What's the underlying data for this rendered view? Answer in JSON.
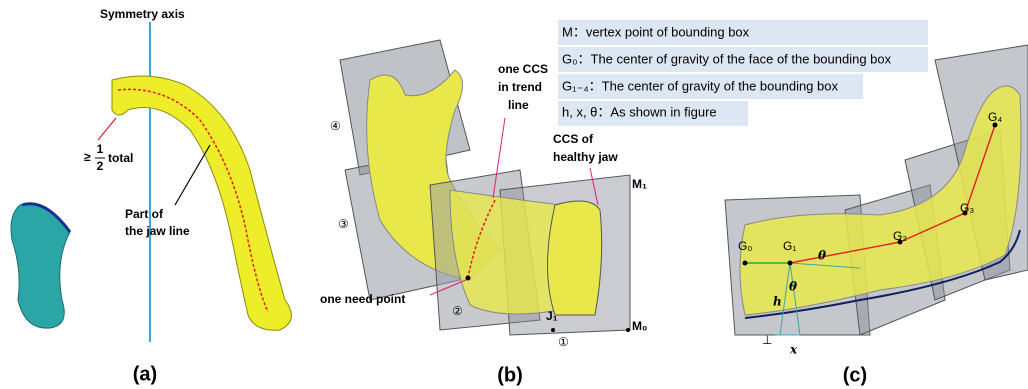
{
  "panel_a": {
    "caption": "(a)",
    "symmetry_axis": "Symmetry axis",
    "fraction": {
      "prefix": "≥",
      "numerator": "1",
      "denominator": "2",
      "suffix": "total"
    },
    "jaw_line": [
      "Part of",
      "the jaw line"
    ]
  },
  "panel_b": {
    "caption": "(b)",
    "ccs_trend": [
      "one CCS",
      "in trend",
      "line"
    ],
    "ccs_healthy": [
      "CCS of",
      "healthy jaw"
    ],
    "m1": "M₁",
    "m0": "M₀",
    "j1": "J₁",
    "boxes": [
      "④",
      "③",
      "②",
      "①"
    ],
    "need_point": "one need point"
  },
  "panel_c": {
    "caption": "(c)",
    "legend": [
      "M：vertex point of bounding box",
      "G₀：The center of gravity of the face of the bounding box",
      "G₁₋₄：The center of gravity of the bounding box",
      "h, x, θ：As shown in figure"
    ],
    "g0": "G₀",
    "g1": "G₁",
    "g2": "G₂",
    "g3": "G₃",
    "g4": "G₄",
    "theta_1": "θ",
    "theta_2": "θ",
    "h": "h",
    "x": "x",
    "perp": "⊥"
  }
}
